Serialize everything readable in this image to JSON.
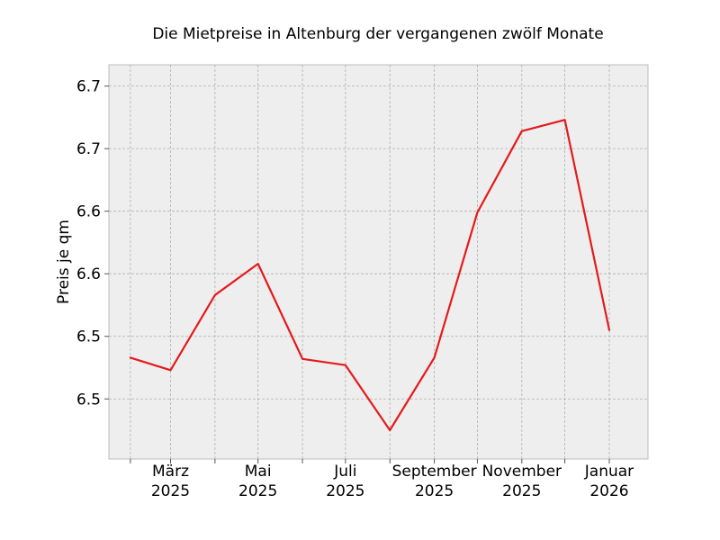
{
  "chart_data": {
    "type": "line",
    "title": "Die Mietpreise in Altenburg der vergangenen zwölf Monate",
    "xlabel": "",
    "ylabel": "Preis je qm",
    "x": [
      "2025-02",
      "2025-03",
      "2025-04",
      "2025-05",
      "2025-06",
      "2025-07",
      "2025-08",
      "2025-09",
      "2025-10",
      "2025-11",
      "2025-12",
      "2026-01"
    ],
    "series": [
      {
        "values": [
          6.508,
          6.498,
          6.558,
          6.583,
          6.507,
          6.502,
          6.45,
          6.508,
          6.624,
          6.689,
          6.698,
          6.53
        ],
        "color": "#e41a1c"
      }
    ],
    "x_ticks": [
      {
        "x": "2025-02",
        "label": ""
      },
      {
        "x": "2025-03",
        "label": "März\n2025"
      },
      {
        "x": "2025-04",
        "label": ""
      },
      {
        "x": "2025-05",
        "label": "Mai\n2025"
      },
      {
        "x": "2025-06",
        "label": ""
      },
      {
        "x": "2025-07",
        "label": "Juli\n2025"
      },
      {
        "x": "2025-08",
        "label": ""
      },
      {
        "x": "2025-09",
        "label": "September\n2025"
      },
      {
        "x": "2025-10",
        "label": ""
      },
      {
        "x": "2025-11",
        "label": "November\n2025"
      },
      {
        "x": "2025-12",
        "label": ""
      },
      {
        "x": "2026-01",
        "label": "Januar\n2026"
      }
    ],
    "y_ticks": [
      {
        "value": 6.475,
        "label": "6.5"
      },
      {
        "value": 6.525,
        "label": "6.5"
      },
      {
        "value": 6.575,
        "label": "6.6"
      },
      {
        "value": 6.625,
        "label": "6.6"
      },
      {
        "value": 6.675,
        "label": "6.7"
      },
      {
        "value": 6.725,
        "label": "6.7"
      }
    ],
    "xlim": [
      "2025-01-17",
      "2026-01-28"
    ],
    "ylim": [
      6.427,
      6.742
    ],
    "grid": true,
    "legend": "none"
  }
}
